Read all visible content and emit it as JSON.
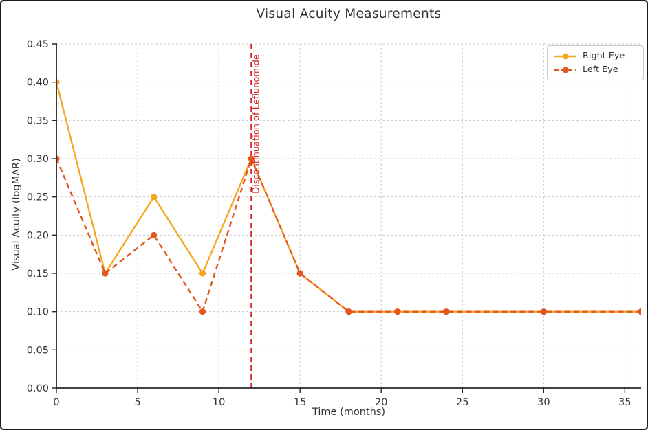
{
  "window": {
    "background": "#ffffff",
    "border_color": "#1b1b1b"
  },
  "chart_data": {
    "type": "line",
    "title": "Visual Acuity Measurements",
    "xlabel": "Time (months)",
    "ylabel": "Visual Acuity (logMAR)",
    "xlim": [
      0,
      36
    ],
    "ylim": [
      0,
      0.45
    ],
    "xticks": [
      0,
      5,
      10,
      15,
      20,
      25,
      30,
      35
    ],
    "yticks": [
      "0.00",
      "0.05",
      "0.10",
      "0.15",
      "0.20",
      "0.25",
      "0.30",
      "0.35",
      "0.40",
      "0.45"
    ],
    "grid": true,
    "grid_color": "#cccccc",
    "axis_color": "#262626",
    "text_color": "#333333",
    "x": [
      0,
      3,
      6,
      9,
      12,
      15,
      18,
      21,
      24,
      30,
      36
    ],
    "series": [
      {
        "name": "Right Eye",
        "color": "#F5A623",
        "style": "solid",
        "marker": "circle",
        "values": [
          0.4,
          0.15,
          0.25,
          0.15,
          0.3,
          0.15,
          0.1,
          0.1,
          0.1,
          0.1,
          0.1
        ]
      },
      {
        "name": "Left Eye",
        "color": "#E2571F",
        "style": "dashed",
        "marker": "circle",
        "values": [
          0.3,
          0.15,
          0.2,
          0.1,
          0.3,
          0.15,
          0.1,
          0.1,
          0.1,
          0.1,
          0.1
        ]
      }
    ],
    "vline": {
      "x": 12,
      "label": "Discontinuation of Leflunomide",
      "color": "#D62728",
      "style": "dashed"
    },
    "legend": {
      "position": "upper right",
      "entries": [
        "Right Eye",
        "Left Eye"
      ]
    }
  }
}
